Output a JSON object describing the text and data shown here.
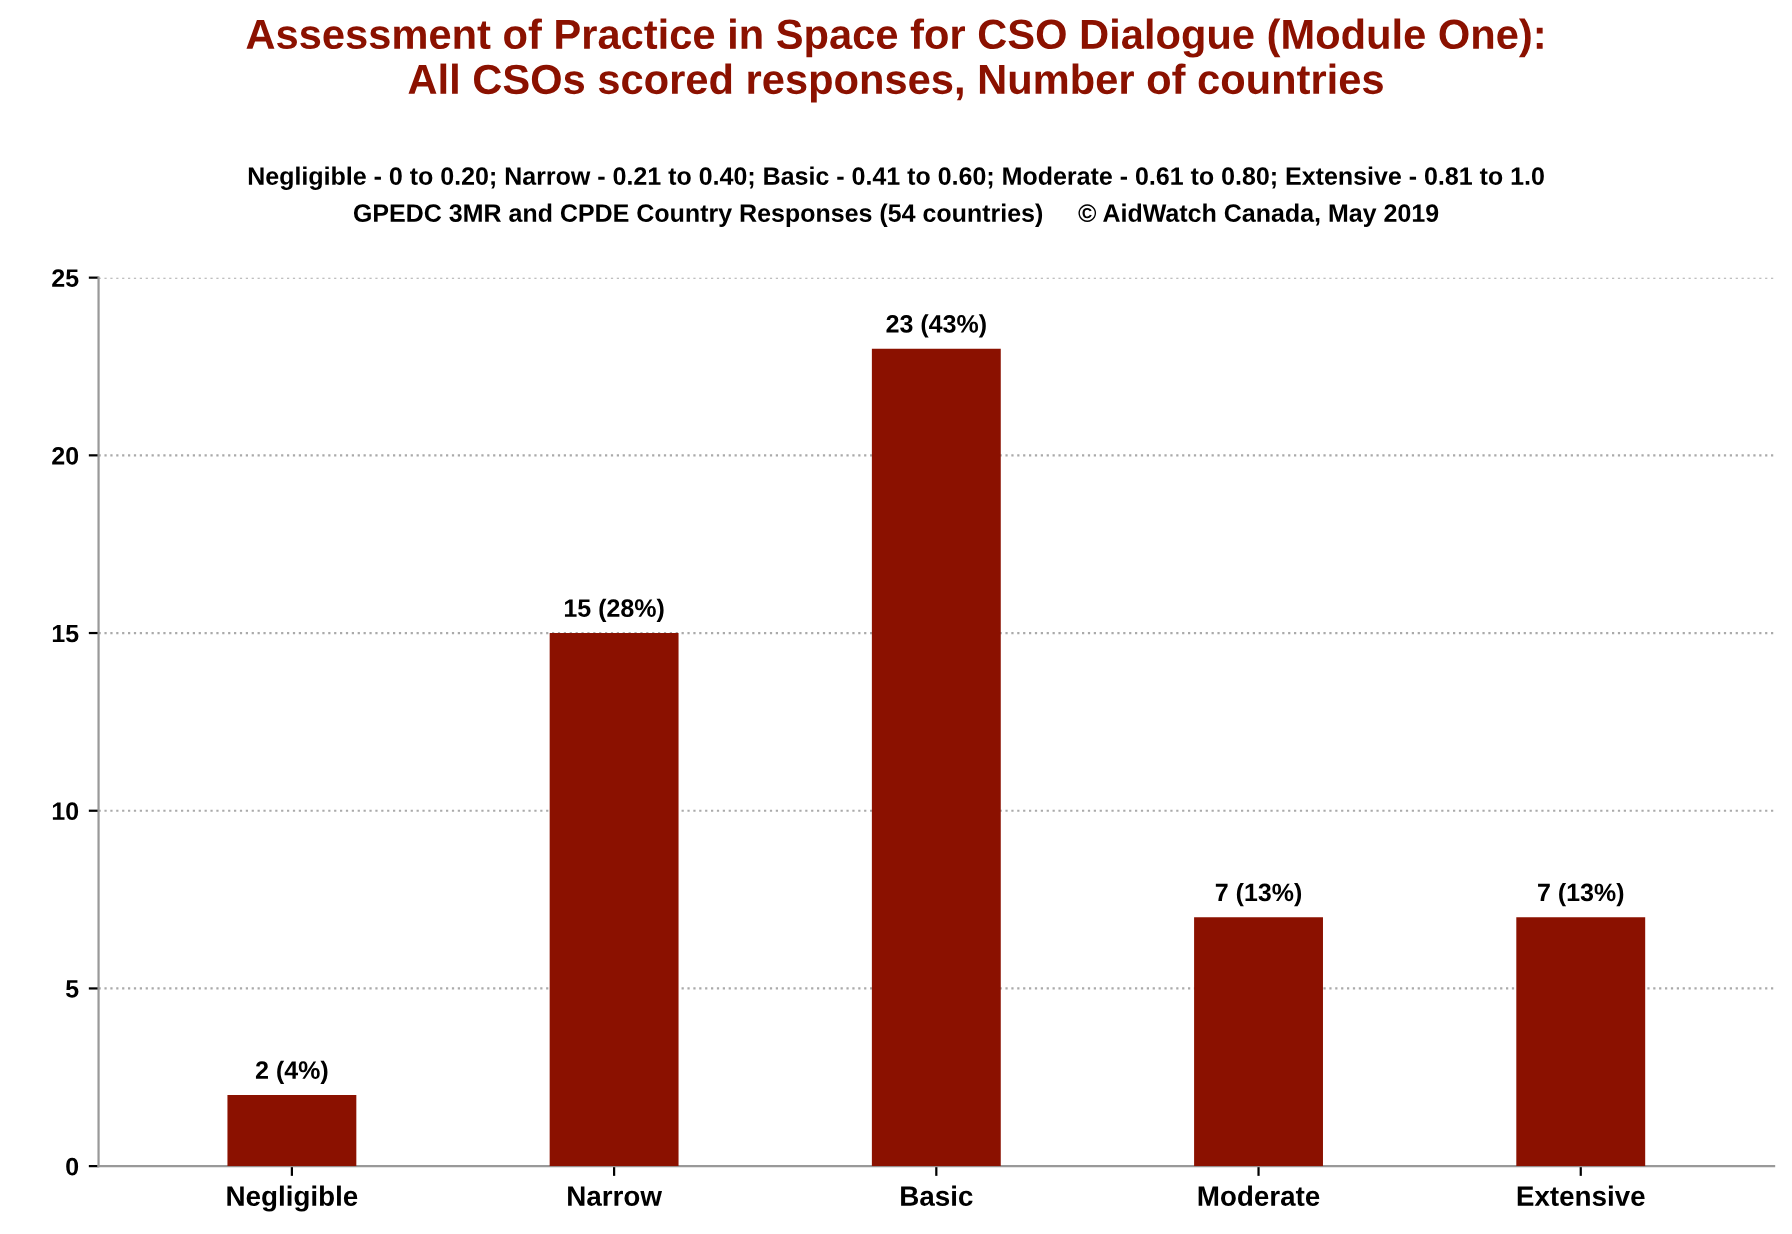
{
  "chart_data": {
    "type": "bar",
    "title": "Assessment of Practice in Space for CSO Dialogue (Module One):\nAll CSOs scored responses, Number of countries",
    "subtitle": "Negligible - 0 to 0.20; Narrow - 0.21 to 0.40; Basic - 0.41 to 0.60; Moderate - 0.61 to 0.80; Extensive - 0.81 to 1.0",
    "annotations": [
      "GPEDC 3MR and CPDE Country Responses (54 countries)     © AidWatch Canada, May 2019"
    ],
    "categories": [
      "Negligible",
      "Narrow",
      "Basic",
      "Moderate",
      "Extensive"
    ],
    "values": [
      2,
      15,
      23,
      7,
      7
    ],
    "value_labels": [
      "2 (4%)",
      "15 (28%)",
      "23 (43%)",
      "7 (13%)",
      "7 (13%)"
    ],
    "color": "#8b1100",
    "ylim": [
      0,
      25
    ],
    "yticks": [
      0,
      5,
      10,
      15,
      20,
      25
    ],
    "grid": "y"
  }
}
